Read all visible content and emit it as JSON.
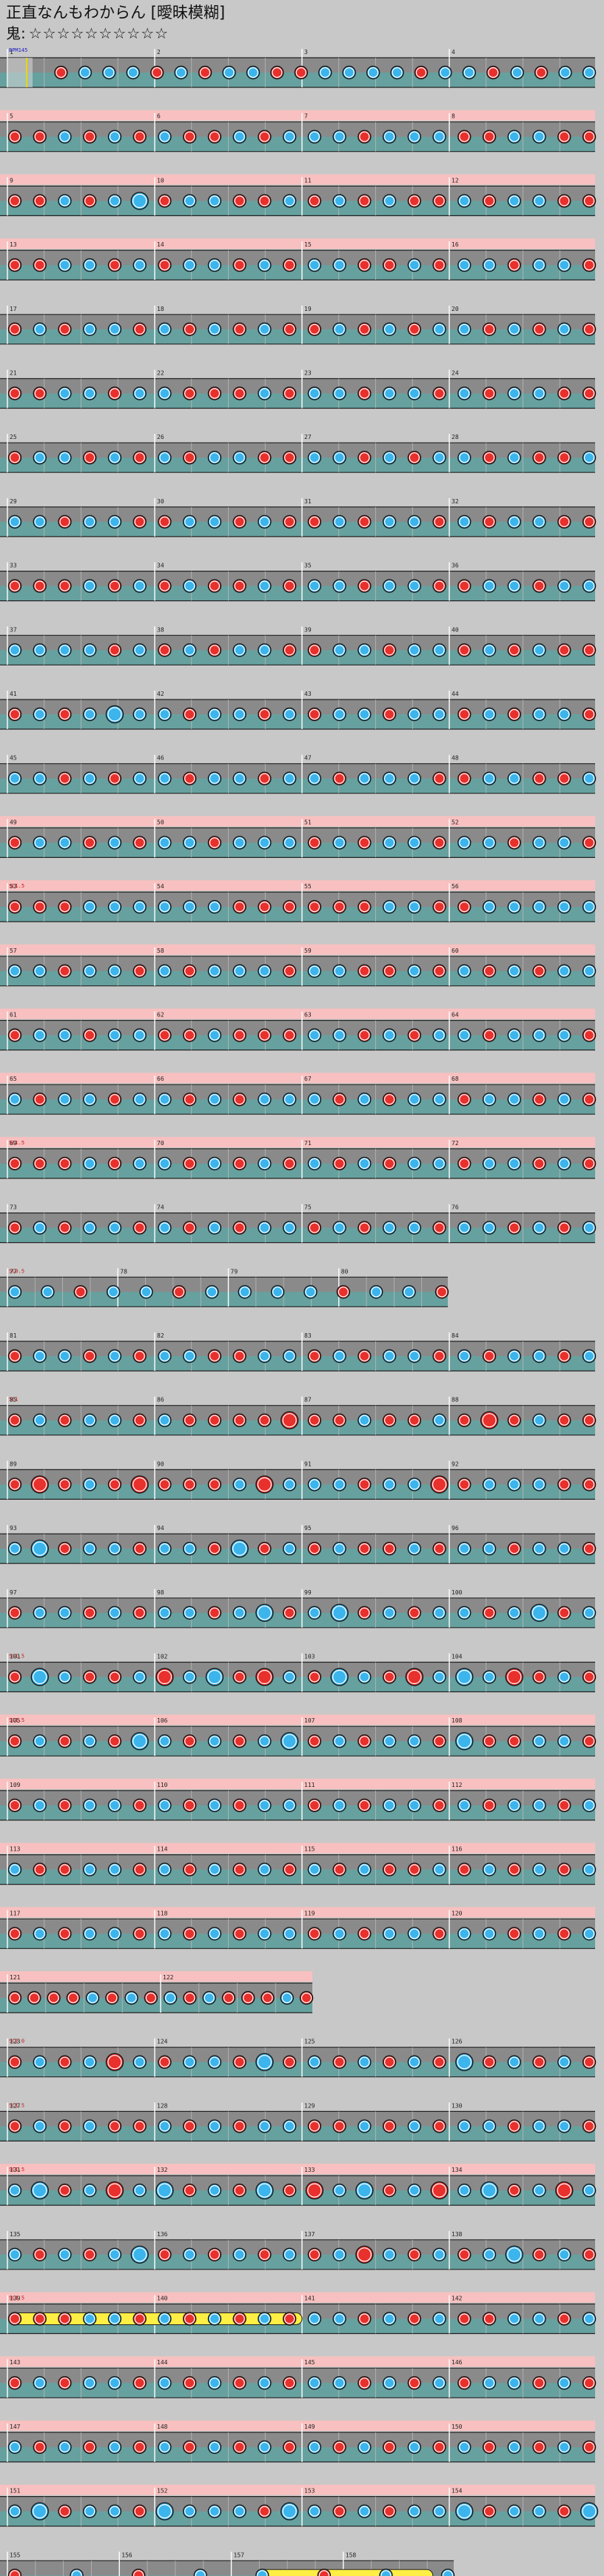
{
  "song": {
    "title": "正直なんもわからん [曖昧模糊]",
    "difficulty_label": "鬼:",
    "stars": "☆☆☆☆☆☆☆☆☆☆"
  },
  "colors": {
    "background": "#c8c8c8",
    "lane_dark": "#8a8a8a",
    "lane_teal": "#5aa8a6",
    "pink_band": "#f8c0c0",
    "don": "#e8302c",
    "ka": "#3cb4ec",
    "drumroll": "#ffee44",
    "scroll_mark": "#c01818"
  },
  "chart_data": {
    "type": "taiko-chart",
    "timeline_start": "BPM145",
    "scroll_notes": [
      "SC1.5",
      "SC1.5",
      "SC0.5",
      "SC0.75",
      "SC0.5",
      "SC0.5",
      "SC1.5",
      "SC1.5",
      "SC1.5",
      "SC2.0",
      "SC1.5"
    ],
    "rows": [
      {
        "measures": [
          1,
          2,
          3,
          4
        ],
        "pattern": "odkkkdkdkkddkkkkdkkdkdkk",
        "scroll": "",
        "roll": null,
        "pink": false
      },
      {
        "measures": [
          5,
          6,
          7,
          8
        ],
        "pattern": "ddkdkdkddkdkkkdkkkddkkdd",
        "scroll": "",
        "roll": null,
        "pink": true
      },
      {
        "measures": [
          9,
          10,
          11,
          12
        ],
        "pattern": "ddkdkKdkkddkdkdkddkdkkdd",
        "scroll": "",
        "roll": null,
        "pink": true
      },
      {
        "measures": [
          13,
          14,
          15,
          16
        ],
        "pattern": "ddkkdkdkkdkdkkddkdkkdkkd",
        "scroll": "",
        "roll": null,
        "pink": true
      },
      {
        "measures": [
          17,
          18,
          19,
          20
        ],
        "pattern": "dkdkkdkdkdkddkdkdkkdkdkd",
        "scroll": "",
        "roll": null,
        "pink": false
      },
      {
        "measures": [
          21,
          22,
          23,
          24
        ],
        "pattern": "ddkkdkkdddkdkkdkkdkdkkdd",
        "scroll": "",
        "roll": null,
        "pink": false
      },
      {
        "measures": [
          25,
          26,
          27,
          28
        ],
        "pattern": "dkkdkdkdkkddkkdkdkkdkddk",
        "scroll": "",
        "roll": null,
        "pink": false
      },
      {
        "measures": [
          29,
          30,
          31,
          32
        ],
        "pattern": "kkdkkddkkdkddkdkkdkdkkdd",
        "scroll": "",
        "roll": null,
        "pink": false
      },
      {
        "measures": [
          33,
          34,
          35,
          36
        ],
        "pattern": "dddkdkdkddkdkkdkkddkkdkk",
        "scroll": "",
        "roll": null,
        "pink": false
      },
      {
        "measures": [
          37,
          38,
          39,
          40
        ],
        "pattern": "kkkkdkdkdkkddkkdkkdkdkdd",
        "scroll": "",
        "roll": null,
        "pink": false
      },
      {
        "measures": [
          41,
          42,
          43,
          44
        ],
        "pattern": "dkdkKkkdkkdkdkkdkkdkdkkd",
        "scroll": "",
        "roll": null,
        "pink": false
      },
      {
        "measures": [
          45,
          46,
          47,
          48
        ],
        "pattern": "kkdkdkkdkkdkkdkkkddkkddk",
        "scroll": "",
        "roll": null,
        "pink": false
      },
      {
        "measures": [
          49,
          50,
          51,
          52
        ],
        "pattern": "dkkdkdkkdkkkdkdkkdkkdkkd",
        "scroll": "",
        "roll": null,
        "pink": true
      },
      {
        "measures": [
          53,
          54,
          55,
          56
        ],
        "pattern": "dddkkkkkkddddddkkddkkkkk",
        "scroll": "SC1.5",
        "roll": null,
        "pink": true
      },
      {
        "measures": [
          57,
          58,
          59,
          60
        ],
        "pattern": "kkdkkdkdkkkdkkddkdkdkdkk",
        "scroll": "",
        "roll": null,
        "pink": true
      },
      {
        "measures": [
          61,
          62,
          63,
          64
        ],
        "pattern": "dkkdkkddkdddkkdkdkkdkkkd",
        "scroll": "",
        "roll": null,
        "pink": true
      },
      {
        "measures": [
          65,
          66,
          67,
          68
        ],
        "pattern": "kdkkdkkdkdkkkdkdkkdkkdkd",
        "scroll": "",
        "roll": null,
        "pink": true
      },
      {
        "measures": [
          69,
          70,
          71,
          72
        ],
        "pattern": "dddkdkkdkdkdkdkdkkdkkdkd",
        "scroll": "SC1.5",
        "roll": null,
        "pink": true
      },
      {
        "measures": [
          73,
          74,
          75,
          76
        ],
        "pattern": "dkdkkdkdkdkkdkdkkdkkdkdk",
        "scroll": "",
        "roll": null,
        "pink": false
      },
      {
        "measures": [
          77,
          78,
          79,
          80
        ],
        "pattern": "kkdkkdkkkkdkkd",
        "scroll": "SC0.5",
        "roll": null,
        "pink": false,
        "width": 0.75
      },
      {
        "measures": [
          81,
          82,
          83,
          84
        ],
        "pattern": "dkkdkdkkddkkdkdkkdkdkkdk",
        "scroll": "",
        "roll": null,
        "pink": false
      },
      {
        "measures": [
          85,
          86,
          87,
          88
        ],
        "pattern": "dkdkkdkddddDddkddkdDdkdd",
        "scroll": "SC1",
        "roll": null,
        "pink": false
      },
      {
        "measures": [
          89,
          90,
          91,
          92
        ],
        "pattern": "dDdkdDdddkDkkkdkkDdkkkdd",
        "scroll": "",
        "roll": null,
        "pink": false
      },
      {
        "measures": [
          93,
          94,
          95,
          96
        ],
        "pattern": "kKdkkdkkdKdkdkddkdkkdkkd",
        "scroll": "",
        "roll": null,
        "pink": false
      },
      {
        "measures": [
          97,
          98,
          99,
          100
        ],
        "pattern": "dkkdkdkkdkKdkKdkdkkdkKdk",
        "scroll": "",
        "roll": null,
        "pink": false
      },
      {
        "measures": [
          101,
          102,
          103,
          104
        ],
        "pattern": "dKkddkDkKdDkdKkdDkKkDdkd",
        "scroll": "SC1.5",
        "roll": null,
        "pink": false
      },
      {
        "measures": [
          105,
          106,
          107,
          108
        ],
        "pattern": "dkdkdKkdkdkKdkdkkdKddkkd",
        "scroll": "SC1.5",
        "roll": null,
        "pink": true
      },
      {
        "measures": [
          109,
          110,
          111,
          112
        ],
        "pattern": "dkdkkdkdkdkkdkdkkdkdkkdk",
        "scroll": "",
        "roll": null,
        "pink": true
      },
      {
        "measures": [
          113,
          114,
          115,
          116
        ],
        "pattern": "kddkkdkdkdkdkdkddkdkdkdk",
        "scroll": "",
        "roll": null,
        "pink": true
      },
      {
        "measures": [
          117,
          118,
          119,
          120
        ],
        "pattern": "dkdkkdkdkdkkdkdkkdkkdkdk",
        "scroll": "",
        "roll": null,
        "pink": true
      },
      {
        "measures": [
          121,
          122
        ],
        "pattern": "ddddkdkdkdkdddkd",
        "scroll": "",
        "roll": null,
        "pink": true,
        "width": 0.52
      },
      {
        "measures": [
          123,
          124,
          125,
          126
        ],
        "pattern": "dkdkDkdkkdKdkdkdkdKdkdkd",
        "scroll": "SC2.0",
        "roll": null,
        "pink": false
      },
      {
        "measures": [
          127,
          128,
          129,
          130
        ],
        "pattern": "dkdkddkdkdkkddkdkdkkdkkd",
        "scroll": "SC1.5",
        "roll": null,
        "pink": false
      },
      {
        "measures": [
          131,
          132,
          133,
          134
        ],
        "pattern": "kKdkDkKdkdKdDkKdkDkKdkDk",
        "scroll": "SC1.5",
        "roll": null,
        "pink": true
      },
      {
        "measures": [
          135,
          136,
          137,
          138
        ],
        "pattern": "kdkdkKdkdkdkdkDkdkdkKdkd",
        "scroll": "",
        "roll": null,
        "pink": false
      },
      {
        "measures": [
          139,
          140,
          141,
          142
        ],
        "pattern": "dddkkdkdkdkdkkdkdkddkkdk",
        "scroll": "SC1.5",
        "roll": [
          0.0,
          0.5
        ],
        "pink": true
      },
      {
        "measures": [
          143,
          144,
          145,
          146
        ],
        "pattern": "dkdkkdkdkdkdkkdkdkdkkdkd",
        "scroll": "",
        "roll": null,
        "pink": true
      },
      {
        "measures": [
          147,
          148,
          149,
          150
        ],
        "pattern": "kdkdkdkdkdkdkdkdkdkdkdkd",
        "scroll": "",
        "roll": null,
        "pink": true
      },
      {
        "measures": [
          151,
          152,
          153,
          154
        ],
        "pattern": "kKdkkdKkkkdKkdkdkkKdkkdK",
        "scroll": "",
        "roll": null,
        "pink": true
      },
      {
        "measures": [
          155,
          156,
          157,
          158
        ],
        "pattern": "dkdkkdkk",
        "scroll": "",
        "roll": [
          0.55,
          0.95
        ],
        "pink": false,
        "width": 0.76
      }
    ]
  }
}
